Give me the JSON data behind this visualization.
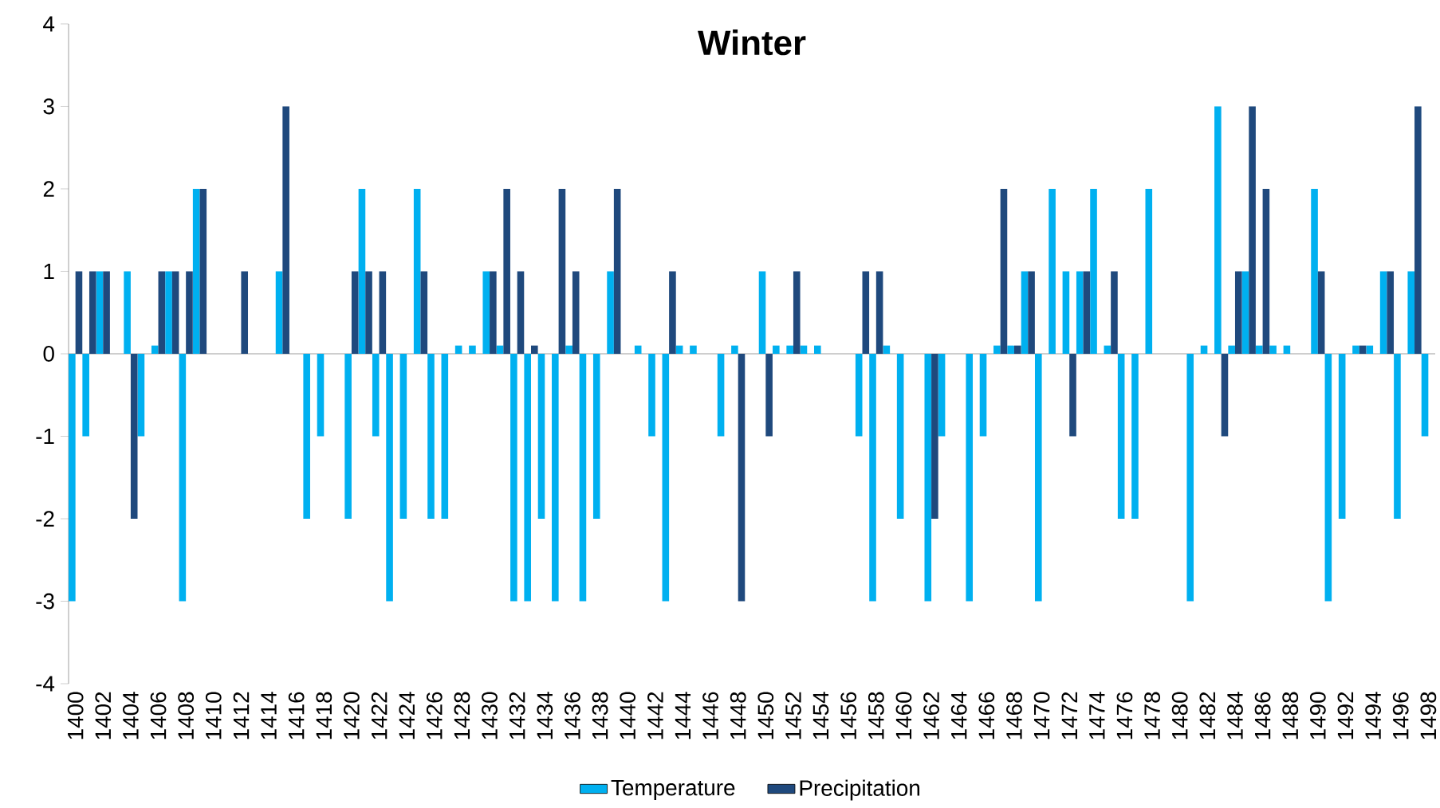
{
  "chart_data": {
    "type": "bar",
    "title": "Winter",
    "categories": [
      "1400",
      null,
      "1402",
      null,
      "1404",
      null,
      "1406",
      null,
      "1408",
      null,
      "1410",
      null,
      "1412",
      null,
      "1414",
      null,
      "1416",
      null,
      "1418",
      null,
      "1420",
      null,
      "1422",
      null,
      "1424",
      null,
      "1426",
      null,
      "1428",
      null,
      "1430",
      null,
      "1432",
      null,
      "1434",
      null,
      "1436",
      null,
      "1438",
      null,
      "1440",
      null,
      "1442",
      null,
      "1444",
      null,
      "1446",
      null,
      "1448",
      null,
      "1450",
      null,
      "1452",
      null,
      "1454",
      null,
      "1456",
      null,
      "1458",
      null,
      "1460",
      null,
      "1462",
      null,
      "1464",
      null,
      "1466",
      null,
      "1468",
      null,
      "1470",
      null,
      "1472",
      null,
      "1474",
      null,
      "1476",
      null,
      "1478",
      null,
      "1480",
      null,
      "1482",
      null,
      "1484",
      null,
      "1486",
      null,
      "1488",
      null,
      "1490",
      null,
      "1492",
      null,
      "1494",
      null,
      "1496",
      null,
      "1498"
    ],
    "series": [
      {
        "name": "Temperature",
        "color": "#00b0f0",
        "values": [
          -3,
          -1,
          1,
          null,
          1,
          -1,
          0.1,
          1,
          -3,
          2,
          null,
          null,
          null,
          null,
          null,
          1,
          null,
          -2,
          -1,
          null,
          -2,
          2,
          -1,
          -3,
          -2,
          2,
          -2,
          -2,
          0.1,
          0.1,
          1,
          0.1,
          -3,
          -3,
          -2,
          -3,
          0.1,
          -3,
          -2,
          1,
          null,
          0.1,
          -1,
          -3,
          0.1,
          0.1,
          null,
          -1,
          0.1,
          null,
          1,
          0.1,
          0.1,
          0.1,
          0.1,
          null,
          null,
          -1,
          -3,
          0.1,
          -2,
          null,
          -3,
          -1,
          null,
          -3,
          -1,
          0.1,
          0.1,
          1,
          -3,
          2,
          1,
          1,
          2,
          0.1,
          -2,
          -2,
          2,
          null,
          null,
          -3,
          0.1,
          3,
          0.1,
          1,
          0.1,
          0.1,
          0.1,
          null,
          2,
          -3,
          -2,
          0.1,
          0.1,
          1,
          -2,
          1,
          -1
        ]
      },
      {
        "name": "Precipitation",
        "color": "#1f497d",
        "values": [
          1,
          1,
          1,
          null,
          -2,
          null,
          1,
          1,
          1,
          2,
          null,
          null,
          1,
          null,
          null,
          3,
          null,
          null,
          null,
          null,
          1,
          1,
          1,
          null,
          null,
          1,
          null,
          null,
          null,
          null,
          1,
          2,
          1,
          0.1,
          null,
          2,
          1,
          null,
          null,
          2,
          null,
          null,
          null,
          1,
          null,
          null,
          null,
          null,
          -3,
          null,
          -1,
          null,
          1,
          null,
          null,
          null,
          null,
          1,
          1,
          null,
          null,
          null,
          -2,
          null,
          null,
          null,
          null,
          2,
          0.1,
          1,
          null,
          null,
          -1,
          1,
          null,
          1,
          null,
          null,
          null,
          null,
          null,
          null,
          null,
          -1,
          1,
          3,
          2,
          null,
          null,
          null,
          1,
          null,
          null,
          0.1,
          null,
          1,
          null,
          3,
          null
        ]
      }
    ],
    "ylim": [
      -4,
      4
    ],
    "yticks": [
      -4,
      -3,
      -2,
      -1,
      0,
      1,
      2,
      3,
      4
    ],
    "legend": "bottom"
  }
}
